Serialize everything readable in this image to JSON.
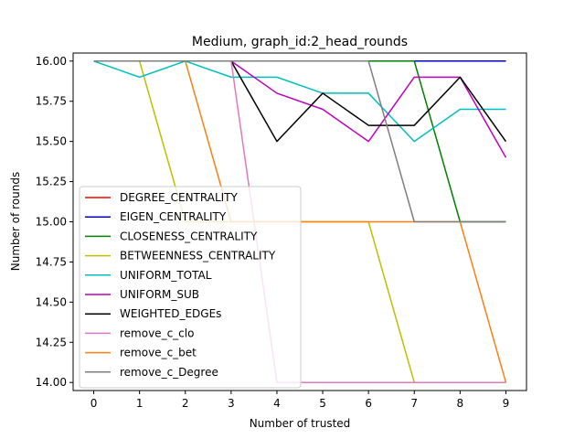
{
  "chart_data": {
    "type": "line",
    "title": "Medium, graph_id:2_head_rounds",
    "xlabel": "Number of trusted",
    "ylabel": "Number of rounds",
    "x": [
      0,
      1,
      2,
      3,
      4,
      5,
      6,
      7,
      8,
      9
    ],
    "xticks": [
      "0",
      "1",
      "2",
      "3",
      "4",
      "5",
      "6",
      "7",
      "8",
      "9"
    ],
    "yticks": [
      "14.00",
      "14.25",
      "14.50",
      "14.75",
      "15.00",
      "15.25",
      "15.50",
      "15.75",
      "16.00"
    ],
    "ytick_values": [
      14.0,
      14.25,
      14.5,
      14.75,
      15.0,
      15.25,
      15.5,
      15.75,
      16.0
    ],
    "xlim": [
      -0.45,
      9.45
    ],
    "ylim": [
      13.95,
      16.05
    ],
    "grid": false,
    "legend_position": "lower-left",
    "series": [
      {
        "name": "DEGREE_CENTRALITY",
        "color": "#ff0000",
        "values": [
          16,
          16,
          16,
          16,
          16,
          16,
          16,
          16,
          16,
          16
        ]
      },
      {
        "name": "EIGEN_CENTRALITY",
        "color": "#0000bf",
        "values": [
          16,
          16,
          16,
          16,
          16,
          16,
          16,
          16,
          16,
          16
        ]
      },
      {
        "name": "CLOSENESS_CENTRALITY",
        "color": "#008000",
        "values": [
          16,
          16,
          16,
          16,
          16,
          16,
          16,
          16,
          15,
          15
        ]
      },
      {
        "name": "BETWEENNESS_CENTRALITY",
        "color": "#bfbf00",
        "values": [
          16,
          16,
          15,
          15,
          15,
          15,
          15,
          14,
          14,
          14
        ]
      },
      {
        "name": "UNIFORM_TOTAL",
        "color": "#00bfbf",
        "values": [
          16,
          15.9,
          16,
          15.9,
          15.9,
          15.8,
          15.8,
          15.5,
          15.7,
          15.7
        ]
      },
      {
        "name": "UNIFORM_SUB",
        "color": "#bf00bf",
        "values": [
          16,
          16,
          16,
          16,
          15.8,
          15.7,
          15.5,
          15.9,
          15.9,
          15.4
        ]
      },
      {
        "name": "WEIGHTED_EDGEs",
        "color": "#000000",
        "values": [
          16,
          16,
          16,
          16,
          15.5,
          15.8,
          15.6,
          15.6,
          15.9,
          15.5
        ]
      },
      {
        "name": "remove_c_clo",
        "color": "#e377c2",
        "values": [
          16,
          16,
          16,
          16,
          14,
          14,
          14,
          14,
          14,
          14
        ]
      },
      {
        "name": "remove_c_bet",
        "color": "#ff7f0e",
        "values": [
          16,
          16,
          16,
          15,
          15,
          15,
          15,
          15,
          15,
          14
        ]
      },
      {
        "name": "remove_c_Degree",
        "color": "#7f7f7f",
        "values": [
          16,
          16,
          16,
          16,
          16,
          16,
          16,
          15,
          15,
          15
        ]
      }
    ]
  }
}
